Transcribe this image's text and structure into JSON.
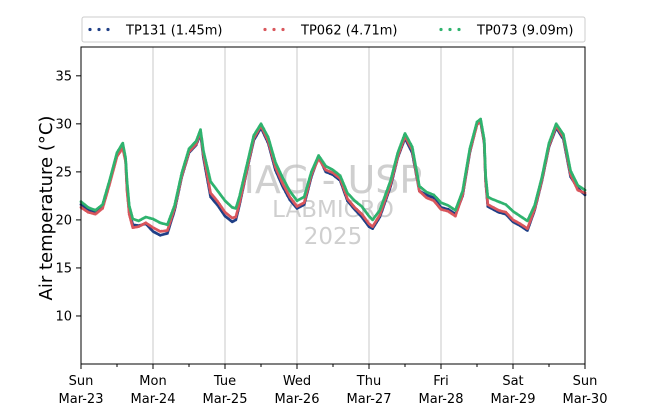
{
  "chart_data": {
    "type": "scatter",
    "ylabel": "Air temperature (°C)",
    "ylim": [
      5,
      38
    ],
    "yticks": [
      10,
      15,
      20,
      25,
      30,
      35
    ],
    "xlim_days": [
      "2025-03-23",
      "2025-03-30"
    ],
    "xticks": [
      {
        "day": "Sun",
        "date": "Mar-23"
      },
      {
        "day": "Mon",
        "date": "Mar-24"
      },
      {
        "day": "Tue",
        "date": "Mar-25"
      },
      {
        "day": "Wed",
        "date": "Mar-26"
      },
      {
        "day": "Thu",
        "date": "Mar-27"
      },
      {
        "day": "Fri",
        "date": "Mar-28"
      },
      {
        "day": "Sat",
        "date": "Mar-29"
      },
      {
        "day": "Sun",
        "date": "Mar-30"
      }
    ],
    "grid": "vertical",
    "legend_position": "top",
    "watermark": [
      "IAG - USP",
      "LABMICRO",
      "2025"
    ],
    "series": [
      {
        "name": "TP131 (1.45m)",
        "color": "#1f3f86",
        "points": [
          [
            0,
            21.6
          ],
          [
            0.1,
            21.0
          ],
          [
            0.2,
            20.8
          ],
          [
            0.3,
            21.4
          ],
          [
            0.4,
            24.0
          ],
          [
            0.5,
            26.8
          ],
          [
            0.58,
            27.8
          ],
          [
            0.62,
            26.2
          ],
          [
            0.64,
            23.2
          ],
          [
            0.67,
            20.8
          ],
          [
            0.72,
            19.5
          ],
          [
            0.8,
            19.4
          ],
          [
            0.9,
            19.6
          ],
          [
            1.0,
            18.8
          ],
          [
            1.1,
            18.4
          ],
          [
            1.2,
            18.6
          ],
          [
            1.3,
            21.0
          ],
          [
            1.4,
            24.5
          ],
          [
            1.5,
            27.0
          ],
          [
            1.6,
            27.8
          ],
          [
            1.66,
            29.0
          ],
          [
            1.7,
            26.5
          ],
          [
            1.8,
            22.4
          ],
          [
            1.9,
            21.5
          ],
          [
            2.0,
            20.4
          ],
          [
            2.1,
            19.8
          ],
          [
            2.15,
            20.0
          ],
          [
            2.2,
            21.5
          ],
          [
            2.3,
            25.0
          ],
          [
            2.4,
            28.3
          ],
          [
            2.5,
            29.6
          ],
          [
            2.6,
            28.0
          ],
          [
            2.7,
            25.2
          ],
          [
            2.8,
            23.5
          ],
          [
            2.9,
            22.1
          ],
          [
            3.0,
            21.2
          ],
          [
            3.1,
            21.6
          ],
          [
            3.2,
            24.5
          ],
          [
            3.3,
            26.6
          ],
          [
            3.4,
            25.0
          ],
          [
            3.5,
            24.7
          ],
          [
            3.6,
            24.1
          ],
          [
            3.7,
            22.0
          ],
          [
            3.8,
            21.1
          ],
          [
            3.9,
            20.3
          ],
          [
            4.0,
            19.3
          ],
          [
            4.05,
            19.1
          ],
          [
            4.15,
            20.3
          ],
          [
            4.3,
            23.5
          ],
          [
            4.4,
            26.5
          ],
          [
            4.5,
            28.5
          ],
          [
            4.6,
            27.0
          ],
          [
            4.7,
            23.0
          ],
          [
            4.8,
            22.6
          ],
          [
            4.9,
            22.3
          ],
          [
            5.0,
            21.3
          ],
          [
            5.1,
            21.1
          ],
          [
            5.2,
            20.6
          ],
          [
            5.3,
            22.5
          ],
          [
            5.4,
            27.0
          ],
          [
            5.5,
            30.0
          ],
          [
            5.55,
            30.2
          ],
          [
            5.6,
            28.0
          ],
          [
            5.62,
            24.0
          ],
          [
            5.65,
            21.4
          ],
          [
            5.7,
            21.2
          ],
          [
            5.8,
            20.8
          ],
          [
            5.9,
            20.6
          ],
          [
            6.0,
            19.8
          ],
          [
            6.1,
            19.4
          ],
          [
            6.2,
            18.9
          ],
          [
            6.3,
            21.0
          ],
          [
            6.4,
            24.0
          ],
          [
            6.5,
            27.6
          ],
          [
            6.6,
            29.6
          ],
          [
            6.7,
            28.4
          ],
          [
            6.8,
            24.5
          ],
          [
            6.9,
            23.3
          ],
          [
            7.0,
            22.6
          ]
        ]
      },
      {
        "name": "TP062 (4.71m)",
        "color": "#d9565c",
        "points": [
          [
            0,
            21.3
          ],
          [
            0.1,
            20.8
          ],
          [
            0.2,
            20.6
          ],
          [
            0.3,
            21.2
          ],
          [
            0.4,
            23.8
          ],
          [
            0.5,
            26.6
          ],
          [
            0.58,
            27.5
          ],
          [
            0.62,
            26.0
          ],
          [
            0.64,
            23.0
          ],
          [
            0.67,
            20.6
          ],
          [
            0.72,
            19.2
          ],
          [
            0.8,
            19.3
          ],
          [
            0.9,
            19.7
          ],
          [
            1.0,
            19.2
          ],
          [
            1.1,
            18.8
          ],
          [
            1.2,
            18.9
          ],
          [
            1.3,
            21.2
          ],
          [
            1.4,
            24.6
          ],
          [
            1.5,
            27.1
          ],
          [
            1.6,
            27.9
          ],
          [
            1.66,
            29.2
          ],
          [
            1.7,
            26.8
          ],
          [
            1.8,
            22.8
          ],
          [
            1.9,
            21.9
          ],
          [
            2.0,
            20.8
          ],
          [
            2.1,
            20.2
          ],
          [
            2.15,
            20.3
          ],
          [
            2.2,
            21.7
          ],
          [
            2.3,
            25.1
          ],
          [
            2.4,
            28.5
          ],
          [
            2.5,
            29.8
          ],
          [
            2.6,
            28.2
          ],
          [
            2.7,
            25.5
          ],
          [
            2.8,
            23.8
          ],
          [
            2.9,
            22.4
          ],
          [
            3.0,
            21.4
          ],
          [
            3.1,
            21.8
          ],
          [
            3.2,
            24.7
          ],
          [
            3.3,
            26.4
          ],
          [
            3.4,
            25.2
          ],
          [
            3.5,
            24.9
          ],
          [
            3.6,
            24.3
          ],
          [
            3.7,
            22.2
          ],
          [
            3.8,
            21.3
          ],
          [
            3.9,
            20.6
          ],
          [
            4.0,
            19.6
          ],
          [
            4.05,
            19.3
          ],
          [
            4.15,
            20.5
          ],
          [
            4.3,
            23.7
          ],
          [
            4.4,
            26.6
          ],
          [
            4.5,
            28.7
          ],
          [
            4.6,
            27.3
          ],
          [
            4.7,
            23.0
          ],
          [
            4.8,
            22.3
          ],
          [
            4.9,
            22.0
          ],
          [
            5.0,
            21.1
          ],
          [
            5.1,
            20.9
          ],
          [
            5.2,
            20.4
          ],
          [
            5.3,
            22.6
          ],
          [
            5.4,
            27.1
          ],
          [
            5.5,
            29.9
          ],
          [
            5.55,
            30.3
          ],
          [
            5.6,
            28.1
          ],
          [
            5.62,
            24.1
          ],
          [
            5.65,
            21.6
          ],
          [
            5.7,
            21.4
          ],
          [
            5.8,
            21.0
          ],
          [
            5.9,
            20.8
          ],
          [
            6.0,
            20.0
          ],
          [
            6.1,
            19.6
          ],
          [
            6.2,
            19.1
          ],
          [
            6.3,
            21.1
          ],
          [
            6.4,
            24.1
          ],
          [
            6.5,
            27.7
          ],
          [
            6.6,
            29.8
          ],
          [
            6.7,
            28.6
          ],
          [
            6.8,
            24.7
          ],
          [
            6.9,
            23.1
          ],
          [
            7.0,
            22.8
          ]
        ]
      },
      {
        "name": "TP073 (9.09m)",
        "color": "#2fb36e",
        "points": [
          [
            0,
            21.9
          ],
          [
            0.1,
            21.3
          ],
          [
            0.2,
            21.0
          ],
          [
            0.3,
            21.6
          ],
          [
            0.4,
            24.2
          ],
          [
            0.5,
            27.0
          ],
          [
            0.58,
            28.0
          ],
          [
            0.62,
            26.4
          ],
          [
            0.64,
            24.0
          ],
          [
            0.67,
            21.5
          ],
          [
            0.72,
            20.1
          ],
          [
            0.8,
            19.9
          ],
          [
            0.9,
            20.3
          ],
          [
            1.0,
            20.1
          ],
          [
            1.1,
            19.7
          ],
          [
            1.2,
            19.5
          ],
          [
            1.3,
            21.5
          ],
          [
            1.4,
            24.9
          ],
          [
            1.5,
            27.4
          ],
          [
            1.6,
            28.2
          ],
          [
            1.66,
            29.4
          ],
          [
            1.7,
            27.2
          ],
          [
            1.8,
            24.0
          ],
          [
            1.9,
            23.0
          ],
          [
            2.0,
            22.0
          ],
          [
            2.1,
            21.3
          ],
          [
            2.15,
            21.2
          ],
          [
            2.2,
            22.4
          ],
          [
            2.3,
            25.6
          ],
          [
            2.4,
            28.8
          ],
          [
            2.5,
            30.0
          ],
          [
            2.6,
            28.6
          ],
          [
            2.7,
            26.0
          ],
          [
            2.8,
            24.4
          ],
          [
            2.9,
            23.0
          ],
          [
            3.0,
            22.0
          ],
          [
            3.1,
            22.4
          ],
          [
            3.2,
            25.0
          ],
          [
            3.3,
            26.7
          ],
          [
            3.4,
            25.6
          ],
          [
            3.5,
            25.2
          ],
          [
            3.6,
            24.6
          ],
          [
            3.7,
            22.8
          ],
          [
            3.8,
            22.0
          ],
          [
            3.9,
            21.4
          ],
          [
            4.0,
            20.4
          ],
          [
            4.05,
            20.0
          ],
          [
            4.15,
            21.0
          ],
          [
            4.3,
            24.1
          ],
          [
            4.4,
            27.0
          ],
          [
            4.5,
            29.0
          ],
          [
            4.6,
            27.6
          ],
          [
            4.7,
            23.5
          ],
          [
            4.8,
            22.9
          ],
          [
            4.9,
            22.6
          ],
          [
            5.0,
            21.8
          ],
          [
            5.1,
            21.5
          ],
          [
            5.2,
            21.0
          ],
          [
            5.3,
            23.0
          ],
          [
            5.4,
            27.4
          ],
          [
            5.5,
            30.2
          ],
          [
            5.55,
            30.5
          ],
          [
            5.6,
            28.4
          ],
          [
            5.62,
            24.6
          ],
          [
            5.65,
            22.4
          ],
          [
            5.7,
            22.2
          ],
          [
            5.8,
            21.9
          ],
          [
            5.9,
            21.6
          ],
          [
            6.0,
            20.9
          ],
          [
            6.1,
            20.4
          ],
          [
            6.2,
            19.9
          ],
          [
            6.3,
            21.5
          ],
          [
            6.4,
            24.4
          ],
          [
            6.5,
            28.0
          ],
          [
            6.6,
            30.0
          ],
          [
            6.7,
            28.9
          ],
          [
            6.8,
            25.1
          ],
          [
            6.9,
            23.6
          ],
          [
            7.0,
            23.1
          ]
        ]
      }
    ]
  }
}
